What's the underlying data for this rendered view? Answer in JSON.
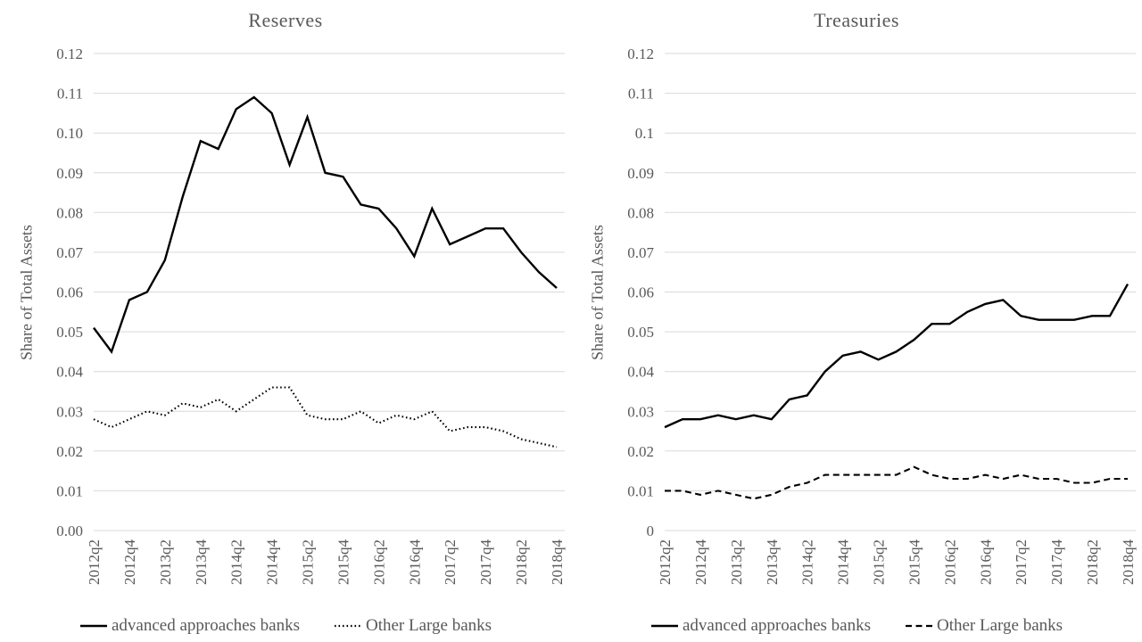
{
  "colors": {
    "series": "#000000",
    "grid": "#d9d9d9",
    "text": "#595959",
    "background": "#ffffff"
  },
  "chart_data": [
    {
      "type": "line",
      "title": "Reserves",
      "ylabel": "Share of Total Assets",
      "ylim": [
        0,
        0.12
      ],
      "y_gridline_step": 0.01,
      "grid": true,
      "legend_position": "bottom",
      "x_quarters": [
        "2012q2",
        "2012q3",
        "2012q4",
        "2013q1",
        "2013q2",
        "2013q3",
        "2013q4",
        "2014q1",
        "2014q2",
        "2014q3",
        "2014q4",
        "2015q1",
        "2015q2",
        "2015q3",
        "2015q4",
        "2016q1",
        "2016q2",
        "2016q3",
        "2016q4",
        "2017q1",
        "2017q2",
        "2017q3",
        "2017q4",
        "2018q1",
        "2018q2",
        "2018q3",
        "2018q4"
      ],
      "x_tick_labels": [
        "2012q2",
        "2012q4",
        "2013q2",
        "2013q4",
        "2014q2",
        "2014q4",
        "2015q2",
        "2015q4",
        "2016q2",
        "2016q4",
        "2017q2",
        "2017q4",
        "2018q2",
        "2018q4"
      ],
      "y_tick_labels": [
        "0.12",
        "0.11",
        "0.10",
        "0.09",
        "0.08",
        "0.07",
        "0.06",
        "0.05",
        "0.04",
        "0.03",
        "0.02",
        "0.01",
        "0.00"
      ],
      "series": [
        {
          "name": "advanced approaches banks",
          "style": "solid",
          "values": [
            0.051,
            0.045,
            0.058,
            0.06,
            0.068,
            0.084,
            0.098,
            0.096,
            0.106,
            0.109,
            0.105,
            0.092,
            0.104,
            0.09,
            0.089,
            0.082,
            0.081,
            0.076,
            0.069,
            0.081,
            0.072,
            0.074,
            0.076,
            0.076,
            0.07,
            0.065,
            0.061
          ]
        },
        {
          "name": "Other Large banks",
          "style": "dotted",
          "values": [
            0.028,
            0.026,
            0.028,
            0.03,
            0.029,
            0.032,
            0.031,
            0.033,
            0.03,
            0.033,
            0.036,
            0.036,
            0.029,
            0.028,
            0.028,
            0.03,
            0.027,
            0.029,
            0.028,
            0.03,
            0.025,
            0.026,
            0.026,
            0.025,
            0.023,
            0.022,
            0.021
          ]
        }
      ]
    },
    {
      "type": "line",
      "title": "Treasuries",
      "ylabel": "Share of Total Assets",
      "ylim": [
        0,
        0.12
      ],
      "y_gridline_step": 0.01,
      "grid": true,
      "legend_position": "bottom",
      "x_quarters": [
        "2012q2",
        "2012q3",
        "2012q4",
        "2013q1",
        "2013q2",
        "2013q3",
        "2013q4",
        "2014q1",
        "2014q2",
        "2014q3",
        "2014q4",
        "2015q1",
        "2015q2",
        "2015q3",
        "2015q4",
        "2016q1",
        "2016q2",
        "2016q3",
        "2016q4",
        "2017q1",
        "2017q2",
        "2017q3",
        "2017q4",
        "2018q1",
        "2018q2",
        "2018q3",
        "2018q4"
      ],
      "x_tick_labels": [
        "2012q2",
        "2012q4",
        "2013q2",
        "2013q4",
        "2014q2",
        "2014q4",
        "2015q2",
        "2015q4",
        "2016q2",
        "2016q4",
        "2017q2",
        "2017q4",
        "2018q2",
        "2018q4"
      ],
      "y_tick_labels": [
        "0.12",
        "0.11",
        "0.1",
        "0.09",
        "0.08",
        "0.07",
        "0.06",
        "0.05",
        "0.04",
        "0.03",
        "0.02",
        "0.01",
        "0"
      ],
      "series": [
        {
          "name": "advanced approaches banks",
          "style": "solid",
          "values": [
            0.026,
            0.028,
            0.028,
            0.029,
            0.028,
            0.029,
            0.028,
            0.033,
            0.034,
            0.04,
            0.044,
            0.045,
            0.043,
            0.045,
            0.048,
            0.052,
            0.052,
            0.055,
            0.057,
            0.058,
            0.054,
            0.053,
            0.053,
            0.053,
            0.054,
            0.054,
            0.062
          ]
        },
        {
          "name": "Other Large banks",
          "style": "dashed",
          "values": [
            0.01,
            0.01,
            0.009,
            0.01,
            0.009,
            0.008,
            0.009,
            0.011,
            0.012,
            0.014,
            0.014,
            0.014,
            0.014,
            0.014,
            0.016,
            0.014,
            0.013,
            0.013,
            0.014,
            0.013,
            0.014,
            0.013,
            0.013,
            0.012,
            0.012,
            0.013,
            0.013
          ]
        }
      ]
    }
  ]
}
